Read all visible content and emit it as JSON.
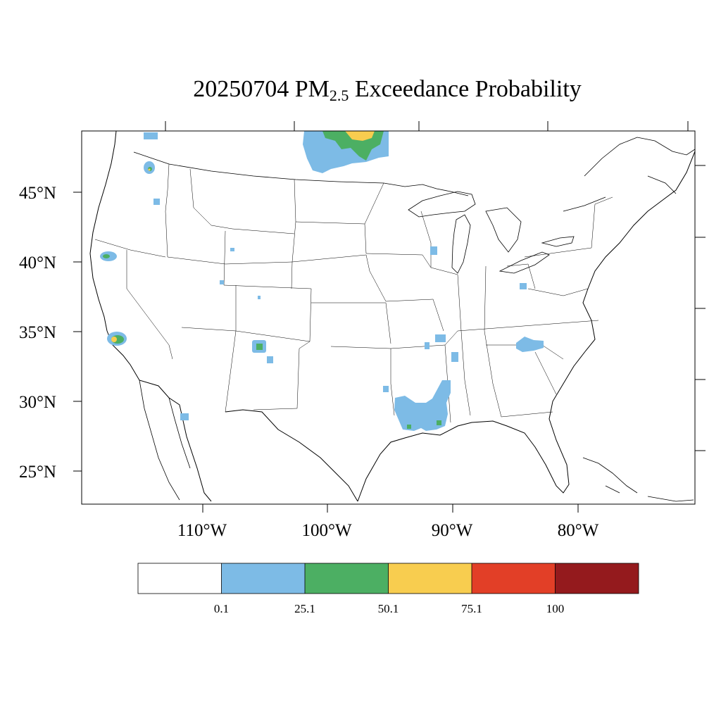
{
  "title": {
    "date": "20250704",
    "pm": "PM",
    "subscript": "2.5",
    "rest": "Exceedance Probability"
  },
  "map": {
    "lat_labels": [
      "45°N",
      "40°N",
      "35°N",
      "30°N",
      "25°N"
    ],
    "lon_labels": [
      "110°W",
      "100°W",
      "90°W",
      "80°W"
    ]
  },
  "colorbar": {
    "labels": [
      "0.1",
      "25.1",
      "50.1",
      "75.1",
      "100"
    ],
    "colors": [
      "#ffffff",
      "#7dbbe6",
      "#4caf63",
      "#f8cd4f",
      "#e23f27",
      "#941a1d"
    ]
  }
}
